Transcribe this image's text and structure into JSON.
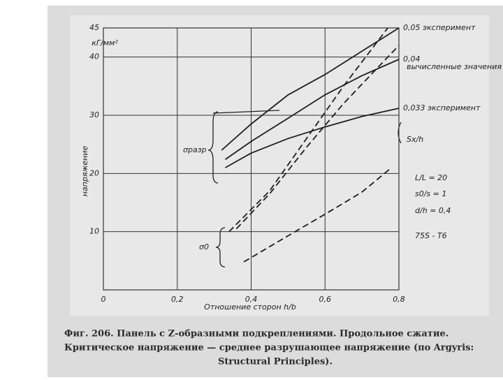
{
  "chart_data": {
    "type": "line",
    "y_label": "напряжение",
    "y_unit": "кГ/мм²",
    "x_label": "Отношение сторон h/b",
    "xlim": [
      0,
      0.8
    ],
    "ylim": [
      0,
      45
    ],
    "xticks": [
      {
        "value": 0,
        "label": "0"
      },
      {
        "value": 0.2,
        "label": "0,2"
      },
      {
        "value": 0.4,
        "label": "0,4"
      },
      {
        "value": 0.6,
        "label": "0,6"
      },
      {
        "value": 0.8,
        "label": "0,8"
      }
    ],
    "yticks": [
      10,
      20,
      30,
      40,
      45
    ],
    "grid": true,
    "series": [
      {
        "name": "0,05 эксперимент",
        "color": "#1e1e1e",
        "style": "solid",
        "x": [
          0.32,
          0.4,
          0.5,
          0.6,
          0.7,
          0.8
        ],
        "values": [
          24,
          28.5,
          33.5,
          37,
          41,
          45
        ]
      },
      {
        "name": "0,04",
        "color": "#1e1e1e",
        "style": "solid",
        "x": [
          0.33,
          0.4,
          0.5,
          0.6,
          0.7,
          0.8
        ],
        "values": [
          22.4,
          25.5,
          29.5,
          33.5,
          36.8,
          39.6
        ]
      },
      {
        "name": "0,033 эксперимент",
        "color": "#1e1e1e",
        "style": "solid",
        "x": [
          0.33,
          0.4,
          0.5,
          0.6,
          0.7,
          0.8
        ],
        "values": [
          21,
          23.5,
          26,
          28,
          29.8,
          31.2
        ]
      },
      {
        "color": "#1e1e1e",
        "style": "dashed",
        "x": [
          0.34,
          0.45,
          0.55,
          0.65,
          0.77
        ],
        "values": [
          10,
          17,
          26,
          35,
          45
        ]
      },
      {
        "color": "#1e1e1e",
        "style": "dashed",
        "x": [
          0.36,
          0.45,
          0.55,
          0.65,
          0.8
        ],
        "values": [
          10.5,
          16.5,
          24.5,
          32,
          42
        ]
      },
      {
        "color": "#1e1e1e",
        "style": "dashed",
        "x": [
          0.38,
          0.5,
          0.6,
          0.7,
          0.78
        ],
        "values": [
          4.8,
          9.3,
          13,
          16.8,
          21
        ]
      }
    ],
    "annotations": [
      "вычисленные значения",
      "σразр",
      "σ0",
      "Sx/h",
      "L/L = 20",
      "s0/s = 1",
      "d/h = 0,4",
      "75S - T6"
    ]
  },
  "caption": {
    "lines": [
      "Фиг. 206. Панель с Z-образными подкреплениями. Продольное сжатие.",
      "Критическое напряжение — среднее разрушающее напряжение (по Argyris:",
      "Structural Principles)."
    ]
  }
}
